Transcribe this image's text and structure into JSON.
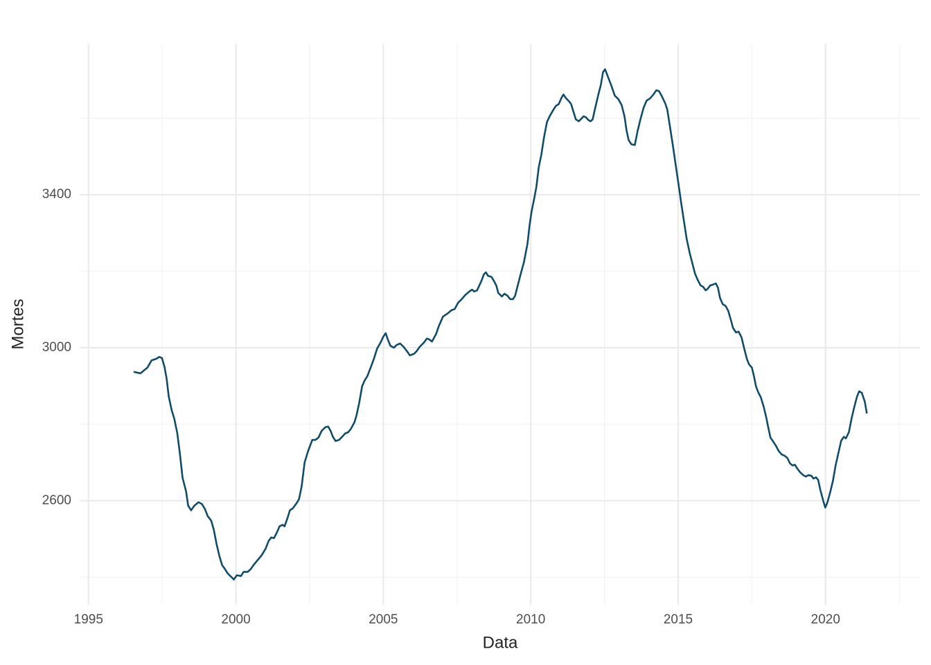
{
  "chart_data": {
    "type": "line",
    "x_label": "Data",
    "y_label": "Mortes",
    "color": "#0f4c6b",
    "grid": true,
    "xlim": [
      1994.7,
      2023.2
    ],
    "xticks": [
      1995,
      2000,
      2005,
      2010,
      2015,
      2020
    ],
    "xminorticks": [
      1997.5,
      2002.5,
      2007.5,
      2012.5,
      2017.5,
      2022.5
    ],
    "ylim": [
      2328,
      3795
    ],
    "yticks": [
      2600,
      3000,
      3400
    ],
    "yminorticks": [
      2400,
      2800,
      3200,
      3600
    ],
    "x": [
      1996.53,
      1996.76,
      1997.0,
      1997.14,
      1997.3,
      1997.4,
      1997.49,
      1997.58,
      1997.65,
      1997.72,
      1997.82,
      1997.91,
      1998.01,
      1998.1,
      1998.19,
      1998.31,
      1998.38,
      1998.48,
      1998.59,
      1998.73,
      1998.85,
      1998.95,
      1999.04,
      1999.16,
      1999.25,
      1999.34,
      1999.44,
      1999.53,
      1999.63,
      1999.72,
      1999.81,
      1999.93,
      2000.03,
      2000.17,
      2000.26,
      2000.4,
      2000.5,
      2000.61,
      2000.75,
      2000.87,
      2001.01,
      2001.11,
      2001.2,
      2001.29,
      2001.39,
      2001.48,
      2001.58,
      2001.65,
      2001.76,
      2001.83,
      2001.93,
      2002.07,
      2002.14,
      2002.23,
      2002.33,
      2002.44,
      2002.59,
      2002.7,
      2002.8,
      2002.91,
      2003.03,
      2003.13,
      2003.22,
      2003.29,
      2003.38,
      2003.5,
      2003.6,
      2003.71,
      2003.81,
      2003.9,
      2004.02,
      2004.09,
      2004.18,
      2004.28,
      2004.37,
      2004.46,
      2004.56,
      2004.68,
      2004.79,
      2004.91,
      2005.0,
      2005.08,
      2005.15,
      2005.24,
      2005.36,
      2005.45,
      2005.57,
      2005.69,
      2005.8,
      2005.9,
      2006.04,
      2006.13,
      2006.23,
      2006.37,
      2006.48,
      2006.55,
      2006.65,
      2006.79,
      2006.88,
      2007.02,
      2007.17,
      2007.31,
      2007.42,
      2007.54,
      2007.66,
      2007.78,
      2007.92,
      2008.01,
      2008.08,
      2008.18,
      2008.27,
      2008.34,
      2008.41,
      2008.48,
      2008.55,
      2008.67,
      2008.74,
      2008.83,
      2008.9,
      2009.02,
      2009.11,
      2009.21,
      2009.3,
      2009.4,
      2009.47,
      2009.56,
      2009.65,
      2009.77,
      2009.89,
      2009.96,
      2010.03,
      2010.12,
      2010.19,
      2010.27,
      2010.36,
      2010.45,
      2010.55,
      2010.64,
      2010.76,
      2010.85,
      2010.95,
      2011.04,
      2011.11,
      2011.2,
      2011.3,
      2011.37,
      2011.44,
      2011.53,
      2011.63,
      2011.72,
      2011.79,
      2011.86,
      2011.96,
      2012.03,
      2012.1,
      2012.19,
      2012.29,
      2012.38,
      2012.45,
      2012.52,
      2012.61,
      2012.73,
      2012.85,
      2012.97,
      2013.08,
      2013.18,
      2013.25,
      2013.32,
      2013.41,
      2013.53,
      2013.62,
      2013.72,
      2013.83,
      2013.93,
      2014.05,
      2014.16,
      2014.26,
      2014.35,
      2014.45,
      2014.56,
      2014.63,
      2014.73,
      2014.82,
      2014.91,
      2015.01,
      2015.1,
      2015.2,
      2015.29,
      2015.39,
      2015.48,
      2015.57,
      2015.67,
      2015.76,
      2015.85,
      2015.93,
      2016.0,
      2016.09,
      2016.18,
      2016.28,
      2016.35,
      2016.42,
      2016.51,
      2016.61,
      2016.7,
      2016.79,
      2016.86,
      2016.96,
      2017.05,
      2017.15,
      2017.24,
      2017.33,
      2017.4,
      2017.5,
      2017.57,
      2017.64,
      2017.73,
      2017.8,
      2017.9,
      2017.99,
      2018.06,
      2018.13,
      2018.23,
      2018.32,
      2018.41,
      2018.51,
      2018.6,
      2018.7,
      2018.79,
      2018.88,
      2018.96,
      2019.05,
      2019.14,
      2019.24,
      2019.33,
      2019.42,
      2019.52,
      2019.59,
      2019.68,
      2019.75,
      2019.82,
      2019.92,
      2019.99,
      2020.06,
      2020.15,
      2020.25,
      2020.34,
      2020.43,
      2020.53,
      2020.62,
      2020.69,
      2020.79,
      2020.88,
      2020.97,
      2021.07,
      2021.14,
      2021.23,
      2021.33,
      2021.4
    ],
    "values": [
      2937,
      2933,
      2948,
      2967,
      2971,
      2976,
      2973,
      2949,
      2919,
      2873,
      2837,
      2814,
      2777,
      2723,
      2660,
      2624,
      2587,
      2575,
      2587,
      2596,
      2591,
      2578,
      2560,
      2548,
      2524,
      2488,
      2455,
      2432,
      2421,
      2410,
      2403,
      2394,
      2405,
      2403,
      2414,
      2414,
      2421,
      2433,
      2446,
      2457,
      2475,
      2495,
      2504,
      2502,
      2517,
      2533,
      2537,
      2533,
      2557,
      2575,
      2580,
      2595,
      2604,
      2638,
      2700,
      2728,
      2759,
      2759,
      2765,
      2783,
      2792,
      2794,
      2781,
      2767,
      2756,
      2759,
      2767,
      2776,
      2779,
      2788,
      2805,
      2823,
      2855,
      2899,
      2915,
      2926,
      2946,
      2971,
      2998,
      3014,
      3029,
      3038,
      3022,
      3005,
      3000,
      3007,
      3011,
      3002,
      2991,
      2980,
      2984,
      2991,
      3002,
      3013,
      3024,
      3022,
      3016,
      3036,
      3056,
      3081,
      3089,
      3098,
      3101,
      3118,
      3127,
      3138,
      3147,
      3152,
      3147,
      3150,
      3165,
      3177,
      3192,
      3197,
      3188,
      3185,
      3176,
      3163,
      3143,
      3134,
      3141,
      3136,
      3127,
      3127,
      3136,
      3163,
      3190,
      3224,
      3272,
      3320,
      3357,
      3391,
      3420,
      3471,
      3505,
      3550,
      3590,
      3605,
      3621,
      3632,
      3637,
      3653,
      3662,
      3652,
      3644,
      3637,
      3619,
      3597,
      3592,
      3599,
      3605,
      3603,
      3595,
      3592,
      3597,
      3628,
      3661,
      3688,
      3720,
      3728,
      3710,
      3686,
      3659,
      3650,
      3635,
      3605,
      3568,
      3543,
      3532,
      3530,
      3565,
      3597,
      3628,
      3646,
      3652,
      3662,
      3673,
      3671,
      3657,
      3639,
      3623,
      3574,
      3529,
      3481,
      3429,
      3380,
      3329,
      3284,
      3248,
      3221,
      3194,
      3176,
      3163,
      3159,
      3150,
      3154,
      3163,
      3165,
      3168,
      3157,
      3130,
      3114,
      3109,
      3096,
      3072,
      3052,
      3040,
      3042,
      3027,
      2998,
      2971,
      2957,
      2948,
      2926,
      2899,
      2881,
      2871,
      2846,
      2817,
      2790,
      2765,
      2754,
      2743,
      2730,
      2721,
      2718,
      2712,
      2698,
      2692,
      2694,
      2683,
      2674,
      2667,
      2663,
      2667,
      2665,
      2658,
      2661,
      2654,
      2629,
      2600,
      2582,
      2595,
      2620,
      2652,
      2692,
      2723,
      2757,
      2767,
      2763,
      2779,
      2814,
      2844,
      2873,
      2886,
      2882,
      2859,
      2828
    ]
  }
}
